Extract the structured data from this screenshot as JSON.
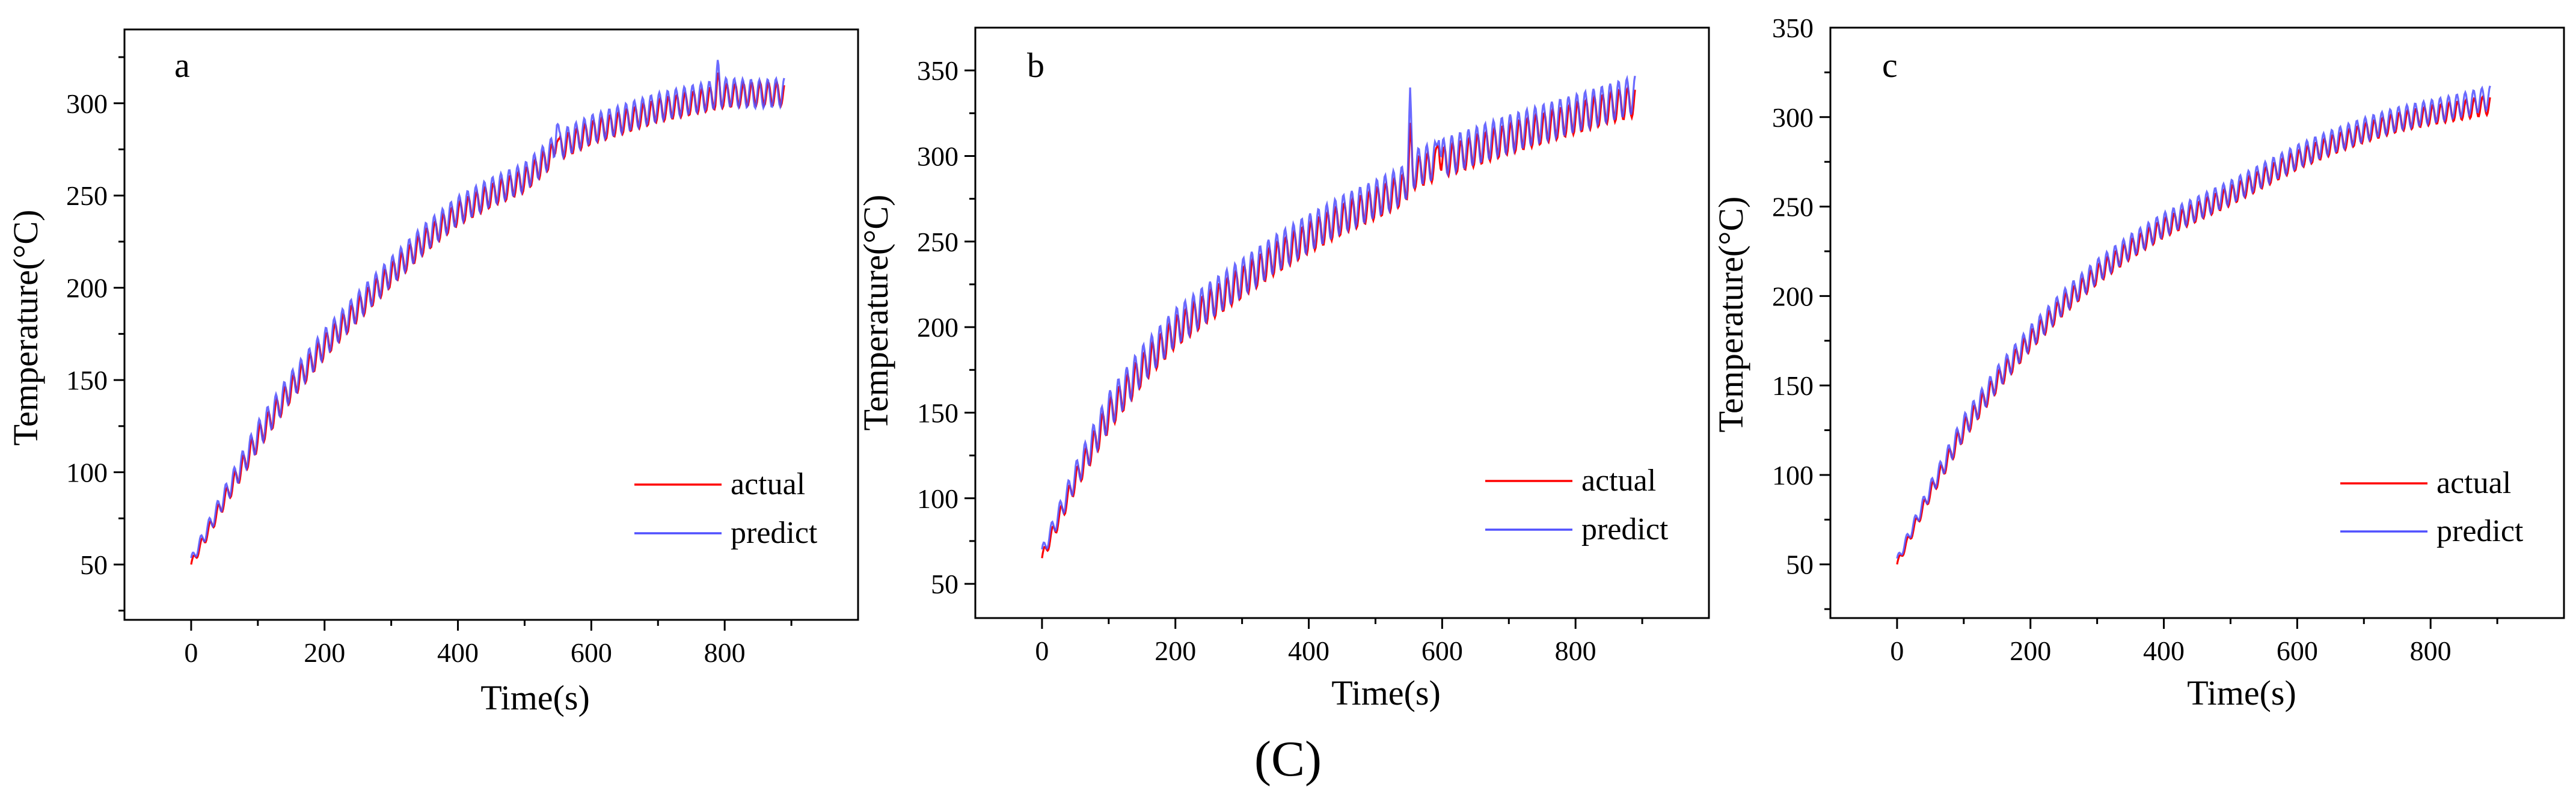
{
  "figure_caption": "(C)",
  "colors": {
    "actual": "#ff0000",
    "predict": "#5050ff",
    "axis": "#000000"
  },
  "chart_data": [
    {
      "type": "line",
      "panel": "a",
      "xlabel": "Time(s)",
      "ylabel": "Temperature(°C)",
      "xlim": [
        -100,
        1000
      ],
      "ylim": [
        20,
        340
      ],
      "xticks": [
        0,
        200,
        400,
        600,
        800
      ],
      "yticks": [
        50,
        100,
        150,
        200,
        250,
        300
      ],
      "legend_position": "bottom-right",
      "oscillation_amplitude": 7,
      "spikes": [
        {
          "x": 548,
          "y": 291
        },
        {
          "x": 790,
          "y": 317
        }
      ],
      "series": [
        {
          "name": "actual",
          "x": [
            0,
            50,
            100,
            150,
            200,
            250,
            300,
            350,
            400,
            450,
            500,
            530,
            550,
            600,
            650,
            700,
            750,
            800,
            850,
            890
          ],
          "y": [
            50,
            85,
            118,
            145,
            168,
            188,
            207,
            225,
            240,
            250,
            258,
            268,
            275,
            284,
            290,
            296,
            300,
            304,
            305,
            305
          ]
        },
        {
          "name": "predict",
          "x": [
            0,
            50,
            100,
            150,
            200,
            250,
            300,
            350,
            400,
            450,
            500,
            530,
            550,
            600,
            650,
            700,
            750,
            800,
            850,
            890
          ],
          "y": [
            52,
            87,
            120,
            147,
            170,
            190,
            209,
            227,
            242,
            252,
            260,
            270,
            277,
            286,
            292,
            298,
            302,
            306,
            305,
            306
          ]
        }
      ]
    },
    {
      "type": "line",
      "panel": "b",
      "xlabel": "Time(s)",
      "ylabel": "Temperature(°C)",
      "xlim": [
        -100,
        1000
      ],
      "ylim": [
        30,
        375
      ],
      "xticks": [
        0,
        200,
        400,
        600,
        800
      ],
      "yticks": [
        50,
        100,
        150,
        200,
        250,
        300,
        350
      ],
      "legend_position": "bottom-right",
      "oscillation_amplitude": 10,
      "spikes": [
        {
          "x": 552,
          "y": 329
        },
        {
          "x": 595,
          "y": 321
        }
      ],
      "series": [
        {
          "name": "actual",
          "x": [
            0,
            50,
            100,
            150,
            200,
            250,
            300,
            350,
            400,
            450,
            500,
            540,
            560,
            600,
            650,
            700,
            750,
            800,
            850,
            890
          ],
          "y": [
            65,
            110,
            148,
            175,
            197,
            212,
            226,
            240,
            252,
            263,
            272,
            280,
            290,
            296,
            303,
            310,
            316,
            322,
            328,
            332
          ]
        },
        {
          "name": "predict",
          "x": [
            0,
            50,
            100,
            150,
            200,
            250,
            300,
            350,
            400,
            450,
            500,
            540,
            560,
            600,
            650,
            700,
            750,
            800,
            850,
            890
          ],
          "y": [
            68,
            113,
            151,
            178,
            200,
            215,
            229,
            243,
            255,
            266,
            275,
            283,
            293,
            299,
            306,
            313,
            319,
            325,
            331,
            336
          ]
        }
      ]
    },
    {
      "type": "line",
      "panel": "c",
      "xlabel": "Time(s)",
      "ylabel": "Temperature(°C)",
      "xlim": [
        -100,
        1000
      ],
      "ylim": [
        20,
        350
      ],
      "xticks": [
        0,
        200,
        400,
        600,
        800
      ],
      "yticks": [
        50,
        100,
        150,
        200,
        250,
        300,
        350
      ],
      "legend_position": "bottom-right",
      "oscillation_amplitude": 6,
      "spikes": [],
      "series": [
        {
          "name": "actual",
          "x": [
            0,
            50,
            100,
            150,
            200,
            250,
            300,
            350,
            400,
            450,
            500,
            550,
            600,
            650,
            700,
            750,
            800,
            850,
            890
          ],
          "y": [
            50,
            90,
            125,
            152,
            175,
            195,
            212,
            226,
            238,
            247,
            256,
            266,
            276,
            284,
            291,
            297,
            301,
            304,
            307
          ]
        },
        {
          "name": "predict",
          "x": [
            0,
            50,
            100,
            150,
            200,
            250,
            300,
            350,
            400,
            450,
            500,
            550,
            600,
            650,
            700,
            750,
            800,
            850,
            890
          ],
          "y": [
            52,
            92,
            127,
            154,
            177,
            197,
            214,
            228,
            240,
            249,
            258,
            268,
            278,
            286,
            293,
            299,
            303,
            307,
            311
          ]
        }
      ]
    }
  ]
}
